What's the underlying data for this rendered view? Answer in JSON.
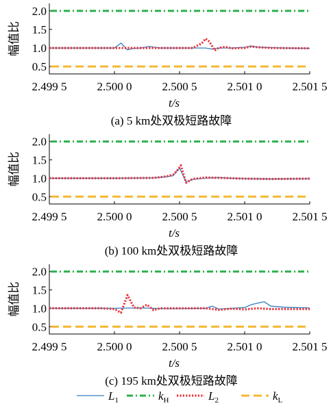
{
  "colors": {
    "L1": "#2f7fc1",
    "kH": "#2ab04a",
    "L2": "#e8333b",
    "kL": "#f5b731"
  },
  "legend": {
    "items": [
      {
        "key": "L1",
        "label": "L",
        "sub": "1",
        "style": "solid"
      },
      {
        "key": "kH",
        "label": "k",
        "sub": "H",
        "style": "dashdot"
      },
      {
        "key": "L2",
        "label": "L",
        "sub": "2",
        "style": "dotted"
      },
      {
        "key": "kL",
        "label": "k",
        "sub": "L",
        "style": "dashed"
      }
    ]
  },
  "chart_data": [
    {
      "type": "line",
      "caption": "(a)  5 km处双极短路故障",
      "ylabel": "幅值比",
      "xlabel": "t/s",
      "xlim": [
        2.4995,
        2.5015
      ],
      "ylim": [
        0.3,
        2.2
      ],
      "xticks": [
        2.4995,
        2.5,
        2.5005,
        2.501,
        2.5015
      ],
      "xtick_labels": [
        "2.499 5",
        "2.500 0",
        "2.500 5",
        "2.501 0",
        "2.501 5"
      ],
      "yticks": [
        0.5,
        1.0,
        1.5,
        2.0
      ],
      "ytick_labels": [
        "0.5",
        "1.0",
        "1.5",
        "2.0"
      ],
      "grid": false,
      "series": [
        {
          "name": "L1",
          "x": [
            2.4995,
            2.5,
            2.50005,
            2.5001,
            2.50015,
            2.5002,
            2.50027,
            2.50035,
            2.5005,
            2.5006,
            2.5007,
            2.50075,
            2.5008,
            2.5009,
            2.501,
            2.50105,
            2.5011,
            2.5012,
            2.5013,
            2.5015
          ],
          "y": [
            1.0,
            1.0,
            1.13,
            0.95,
            0.99,
            1.0,
            1.04,
            1.0,
            1.0,
            1.0,
            1.0,
            0.97,
            1.0,
            1.0,
            1.02,
            1.05,
            1.02,
            1.01,
            1.0,
            0.99
          ]
        },
        {
          "name": "L2",
          "x": [
            2.4995,
            2.5,
            2.5005,
            2.5006,
            2.50067,
            2.5007,
            2.50073,
            2.50077,
            2.5008,
            2.50085,
            2.5009,
            2.501,
            2.50105,
            2.5011,
            2.5012,
            2.5015
          ],
          "y": [
            1.0,
            1.0,
            1.0,
            1.0,
            1.12,
            1.25,
            1.17,
            0.93,
            1.0,
            1.03,
            0.99,
            1.0,
            1.04,
            1.02,
            1.0,
            0.99
          ]
        },
        {
          "name": "kH",
          "constant": 2.0
        },
        {
          "name": "kL",
          "constant": 0.5
        }
      ]
    },
    {
      "type": "line",
      "caption": "(b)  100 km处双极短路故障",
      "ylabel": "幅值比",
      "xlabel": "t/s",
      "xlim": [
        2.4995,
        2.5015
      ],
      "ylim": [
        0.3,
        2.2
      ],
      "xticks": [
        2.4995,
        2.5,
        2.5005,
        2.501,
        2.5015
      ],
      "xtick_labels": [
        "2.499 5",
        "2.500 0",
        "2.500 5",
        "2.501 0",
        "2.501 5"
      ],
      "yticks": [
        0.5,
        1.0,
        1.5,
        2.0
      ],
      "ytick_labels": [
        "0.5",
        "1.0",
        "1.5",
        "2.0"
      ],
      "grid": false,
      "series": [
        {
          "name": "L1",
          "x": [
            2.4995,
            2.5,
            2.5003,
            2.5004,
            2.50045,
            2.5005,
            2.50055,
            2.5006,
            2.5007,
            2.5008,
            2.5009,
            2.501,
            2.5012,
            2.5015
          ],
          "y": [
            1.0,
            1.0,
            1.01,
            1.04,
            1.07,
            1.28,
            0.9,
            0.97,
            1.0,
            1.02,
            1.0,
            0.99,
            0.98,
            0.99
          ]
        },
        {
          "name": "L2",
          "x": [
            2.4995,
            2.5,
            2.5003,
            2.5004,
            2.50045,
            2.50048,
            2.50051,
            2.50055,
            2.5006,
            2.5007,
            2.5008,
            2.5009,
            2.501,
            2.5012,
            2.5015
          ],
          "y": [
            1.0,
            1.0,
            1.01,
            1.05,
            1.1,
            1.2,
            1.35,
            0.88,
            0.98,
            1.02,
            1.01,
            1.0,
            0.99,
            0.98,
            0.99
          ]
        },
        {
          "name": "kH",
          "constant": 2.0
        },
        {
          "name": "kL",
          "constant": 0.5
        }
      ]
    },
    {
      "type": "line",
      "caption": "(c)  195 km处双极短路故障",
      "ylabel": "幅值比",
      "xlabel": "t/s",
      "xlim": [
        2.4995,
        2.5015
      ],
      "ylim": [
        0.3,
        2.2
      ],
      "xticks": [
        2.4995,
        2.5,
        2.5005,
        2.501,
        2.5015
      ],
      "xtick_labels": [
        "2.499 5",
        "2.500 0",
        "2.500 5",
        "2.501 0",
        "2.501 5"
      ],
      "yticks": [
        0.5,
        1.0,
        1.5,
        2.0
      ],
      "ytick_labels": [
        "0.5",
        "1.0",
        "1.5",
        "2.0"
      ],
      "grid": false,
      "series": [
        {
          "name": "L1",
          "x": [
            2.4995,
            2.5,
            2.5002,
            2.5004,
            2.5007,
            2.50075,
            2.5008,
            2.5009,
            2.501,
            2.50105,
            2.5011,
            2.50115,
            2.5012,
            2.5013,
            2.5015
          ],
          "y": [
            1.0,
            1.0,
            1.01,
            0.99,
            1.0,
            1.06,
            0.98,
            1.0,
            1.02,
            1.1,
            1.14,
            1.18,
            1.06,
            1.03,
            1.01
          ]
        },
        {
          "name": "L2",
          "x": [
            2.4995,
            2.4999,
            2.5,
            2.50005,
            2.5001,
            2.50015,
            2.5002,
            2.50025,
            2.5003,
            2.50035,
            2.5004,
            2.5005,
            2.5006,
            2.5007,
            2.5008,
            2.5009,
            2.501,
            2.5011,
            2.5012,
            2.5015
          ],
          "y": [
            1.0,
            1.0,
            0.98,
            0.88,
            1.36,
            1.02,
            1.0,
            1.1,
            0.95,
            1.0,
            1.0,
            1.0,
            1.0,
            1.0,
            0.96,
            0.99,
            0.97,
            1.0,
            0.98,
            0.98
          ]
        },
        {
          "name": "kH",
          "constant": 2.0
        },
        {
          "name": "kL",
          "constant": 0.5
        }
      ]
    }
  ]
}
